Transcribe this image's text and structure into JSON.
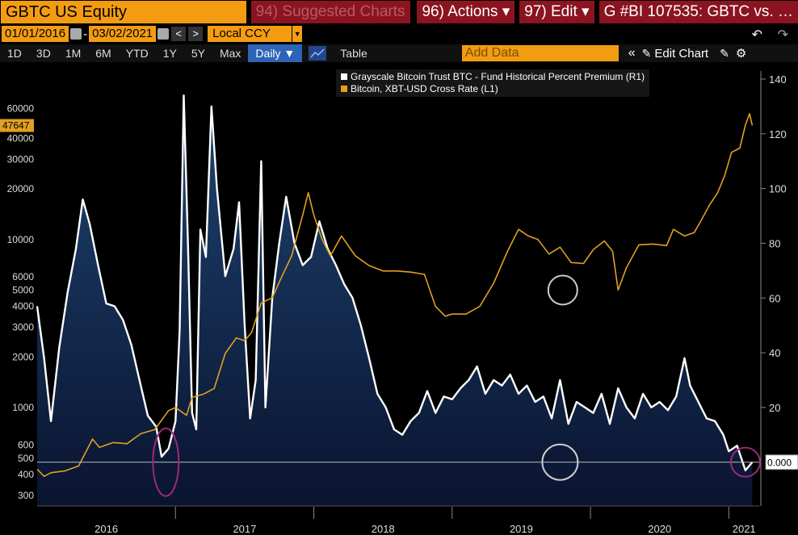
{
  "toolbar": {
    "ticker": "GBTC US Equity",
    "suggested": "94) Suggested Charts",
    "actions": "96) Actions ▾",
    "edit": "97) Edit ▾",
    "title": "G #BI 107535: GBTC vs. …",
    "start_date": "01/01/2016",
    "end_date": "03/02/2021",
    "date_sep": "-",
    "currency": "Local CCY",
    "ranges": [
      "1D",
      "3D",
      "1M",
      "6M",
      "YTD",
      "1Y",
      "5Y",
      "Max"
    ],
    "frequency": "Daily ▼",
    "table": "Table",
    "add_data": "Add Data",
    "edit_chart": "Edit Chart"
  },
  "chart_data": {
    "type": "line",
    "series": [
      {
        "name": "Grayscale Bitcoin Trust BTC - Fund Historical Percent Premium (R1)",
        "axis": "right",
        "color": "#ffffff",
        "fill": "#102a50"
      },
      {
        "name": "Bitcoin, XBT-USD Cross Rate (L1)",
        "axis": "left",
        "color": "#e0a020"
      }
    ],
    "left_axis": {
      "scale": "log",
      "ticks": [
        "60000",
        "40000",
        "30000",
        "20000",
        "10000",
        "6000",
        "5000",
        "4000",
        "3000",
        "2000",
        "1000",
        "600",
        "500",
        "400",
        "300"
      ],
      "current_label": "47647",
      "current_value": 47647
    },
    "right_axis": {
      "ticks": [
        "140",
        "120",
        "100",
        "80",
        "60",
        "40",
        "20"
      ],
      "current_label": "0.000",
      "range": [
        -16,
        140
      ]
    },
    "x_ticks": [
      "2016",
      "2017",
      "2018",
      "2019",
      "2020",
      "2021"
    ],
    "premium_points": [
      [
        2016.0,
        57
      ],
      [
        2016.05,
        38
      ],
      [
        2016.1,
        15
      ],
      [
        2016.16,
        42
      ],
      [
        2016.22,
        62
      ],
      [
        2016.28,
        78
      ],
      [
        2016.33,
        96
      ],
      [
        2016.38,
        87
      ],
      [
        2016.44,
        72
      ],
      [
        2016.5,
        58
      ],
      [
        2016.56,
        57
      ],
      [
        2016.62,
        52
      ],
      [
        2016.68,
        43
      ],
      [
        2016.74,
        30
      ],
      [
        2016.8,
        17
      ],
      [
        2016.86,
        13
      ],
      [
        2016.9,
        2
      ],
      [
        2016.95,
        5
      ],
      [
        2017.0,
        15
      ],
      [
        2017.03,
        48
      ],
      [
        2017.06,
        134
      ],
      [
        2017.09,
        80
      ],
      [
        2017.12,
        18
      ],
      [
        2017.15,
        12
      ],
      [
        2017.18,
        85
      ],
      [
        2017.22,
        75
      ],
      [
        2017.26,
        130
      ],
      [
        2017.3,
        100
      ],
      [
        2017.36,
        68
      ],
      [
        2017.42,
        78
      ],
      [
        2017.46,
        95
      ],
      [
        2017.5,
        50
      ],
      [
        2017.54,
        16
      ],
      [
        2017.58,
        30
      ],
      [
        2017.62,
        110
      ],
      [
        2017.65,
        20
      ],
      [
        2017.7,
        60
      ],
      [
        2017.75,
        80
      ],
      [
        2017.8,
        97
      ],
      [
        2017.86,
        80
      ],
      [
        2017.92,
        72
      ],
      [
        2017.98,
        75
      ],
      [
        2018.04,
        88
      ],
      [
        2018.1,
        78
      ],
      [
        2018.16,
        72
      ],
      [
        2018.22,
        65
      ],
      [
        2018.28,
        60
      ],
      [
        2018.34,
        50
      ],
      [
        2018.4,
        38
      ],
      [
        2018.46,
        25
      ],
      [
        2018.52,
        20
      ],
      [
        2018.58,
        12
      ],
      [
        2018.64,
        10
      ],
      [
        2018.7,
        15
      ],
      [
        2018.76,
        18
      ],
      [
        2018.82,
        26
      ],
      [
        2018.88,
        18
      ],
      [
        2018.94,
        24
      ],
      [
        2019.0,
        23
      ],
      [
        2019.06,
        27
      ],
      [
        2019.12,
        30
      ],
      [
        2019.18,
        35
      ],
      [
        2019.24,
        25
      ],
      [
        2019.3,
        30
      ],
      [
        2019.36,
        28
      ],
      [
        2019.42,
        32
      ],
      [
        2019.48,
        25
      ],
      [
        2019.54,
        28
      ],
      [
        2019.6,
        22
      ],
      [
        2019.66,
        24
      ],
      [
        2019.72,
        16
      ],
      [
        2019.78,
        30
      ],
      [
        2019.84,
        14
      ],
      [
        2019.9,
        22
      ],
      [
        2019.96,
        20
      ],
      [
        2020.02,
        18
      ],
      [
        2020.08,
        25
      ],
      [
        2020.14,
        14
      ],
      [
        2020.2,
        27
      ],
      [
        2020.26,
        20
      ],
      [
        2020.32,
        16
      ],
      [
        2020.38,
        25
      ],
      [
        2020.44,
        20
      ],
      [
        2020.5,
        22
      ],
      [
        2020.56,
        19
      ],
      [
        2020.62,
        24
      ],
      [
        2020.68,
        38
      ],
      [
        2020.72,
        28
      ],
      [
        2020.78,
        22
      ],
      [
        2020.84,
        16
      ],
      [
        2020.9,
        15
      ],
      [
        2020.96,
        10
      ],
      [
        2021.0,
        4
      ],
      [
        2021.06,
        6
      ],
      [
        2021.12,
        -3
      ],
      [
        2021.17,
        0
      ]
    ],
    "btc_points": [
      [
        2016.0,
        430
      ],
      [
        2016.05,
        390
      ],
      [
        2016.1,
        410
      ],
      [
        2016.2,
        420
      ],
      [
        2016.3,
        450
      ],
      [
        2016.4,
        650
      ],
      [
        2016.45,
        580
      ],
      [
        2016.55,
        620
      ],
      [
        2016.65,
        610
      ],
      [
        2016.75,
        700
      ],
      [
        2016.85,
        740
      ],
      [
        2016.95,
        960
      ],
      [
        2017.0,
        1000
      ],
      [
        2017.08,
        900
      ],
      [
        2017.12,
        1150
      ],
      [
        2017.2,
        1200
      ],
      [
        2017.28,
        1300
      ],
      [
        2017.36,
        2100
      ],
      [
        2017.44,
        2600
      ],
      [
        2017.5,
        2500
      ],
      [
        2017.55,
        2800
      ],
      [
        2017.62,
        4200
      ],
      [
        2017.7,
        4500
      ],
      [
        2017.76,
        5800
      ],
      [
        2017.84,
        8000
      ],
      [
        2017.92,
        14000
      ],
      [
        2017.96,
        19000
      ],
      [
        2018.0,
        14000
      ],
      [
        2018.06,
        10000
      ],
      [
        2018.12,
        8000
      ],
      [
        2018.2,
        10500
      ],
      [
        2018.3,
        8000
      ],
      [
        2018.4,
        7000
      ],
      [
        2018.5,
        6500
      ],
      [
        2018.6,
        6500
      ],
      [
        2018.7,
        6400
      ],
      [
        2018.8,
        6200
      ],
      [
        2018.88,
        4000
      ],
      [
        2018.95,
        3500
      ],
      [
        2019.0,
        3600
      ],
      [
        2019.1,
        3600
      ],
      [
        2019.2,
        4000
      ],
      [
        2019.3,
        5500
      ],
      [
        2019.4,
        8500
      ],
      [
        2019.48,
        11500
      ],
      [
        2019.55,
        10500
      ],
      [
        2019.62,
        10000
      ],
      [
        2019.7,
        8200
      ],
      [
        2019.78,
        9000
      ],
      [
        2019.86,
        7300
      ],
      [
        2019.95,
        7200
      ],
      [
        2020.02,
        8700
      ],
      [
        2020.1,
        9800
      ],
      [
        2020.16,
        8500
      ],
      [
        2020.2,
        5000
      ],
      [
        2020.26,
        6800
      ],
      [
        2020.35,
        9300
      ],
      [
        2020.45,
        9400
      ],
      [
        2020.55,
        9200
      ],
      [
        2020.6,
        11500
      ],
      [
        2020.68,
        10500
      ],
      [
        2020.75,
        11000
      ],
      [
        2020.8,
        13000
      ],
      [
        2020.86,
        16000
      ],
      [
        2020.92,
        19000
      ],
      [
        2020.97,
        24000
      ],
      [
        2021.02,
        33000
      ],
      [
        2021.08,
        35000
      ],
      [
        2021.12,
        48000
      ],
      [
        2021.15,
        56000
      ],
      [
        2021.17,
        47647
      ]
    ]
  }
}
